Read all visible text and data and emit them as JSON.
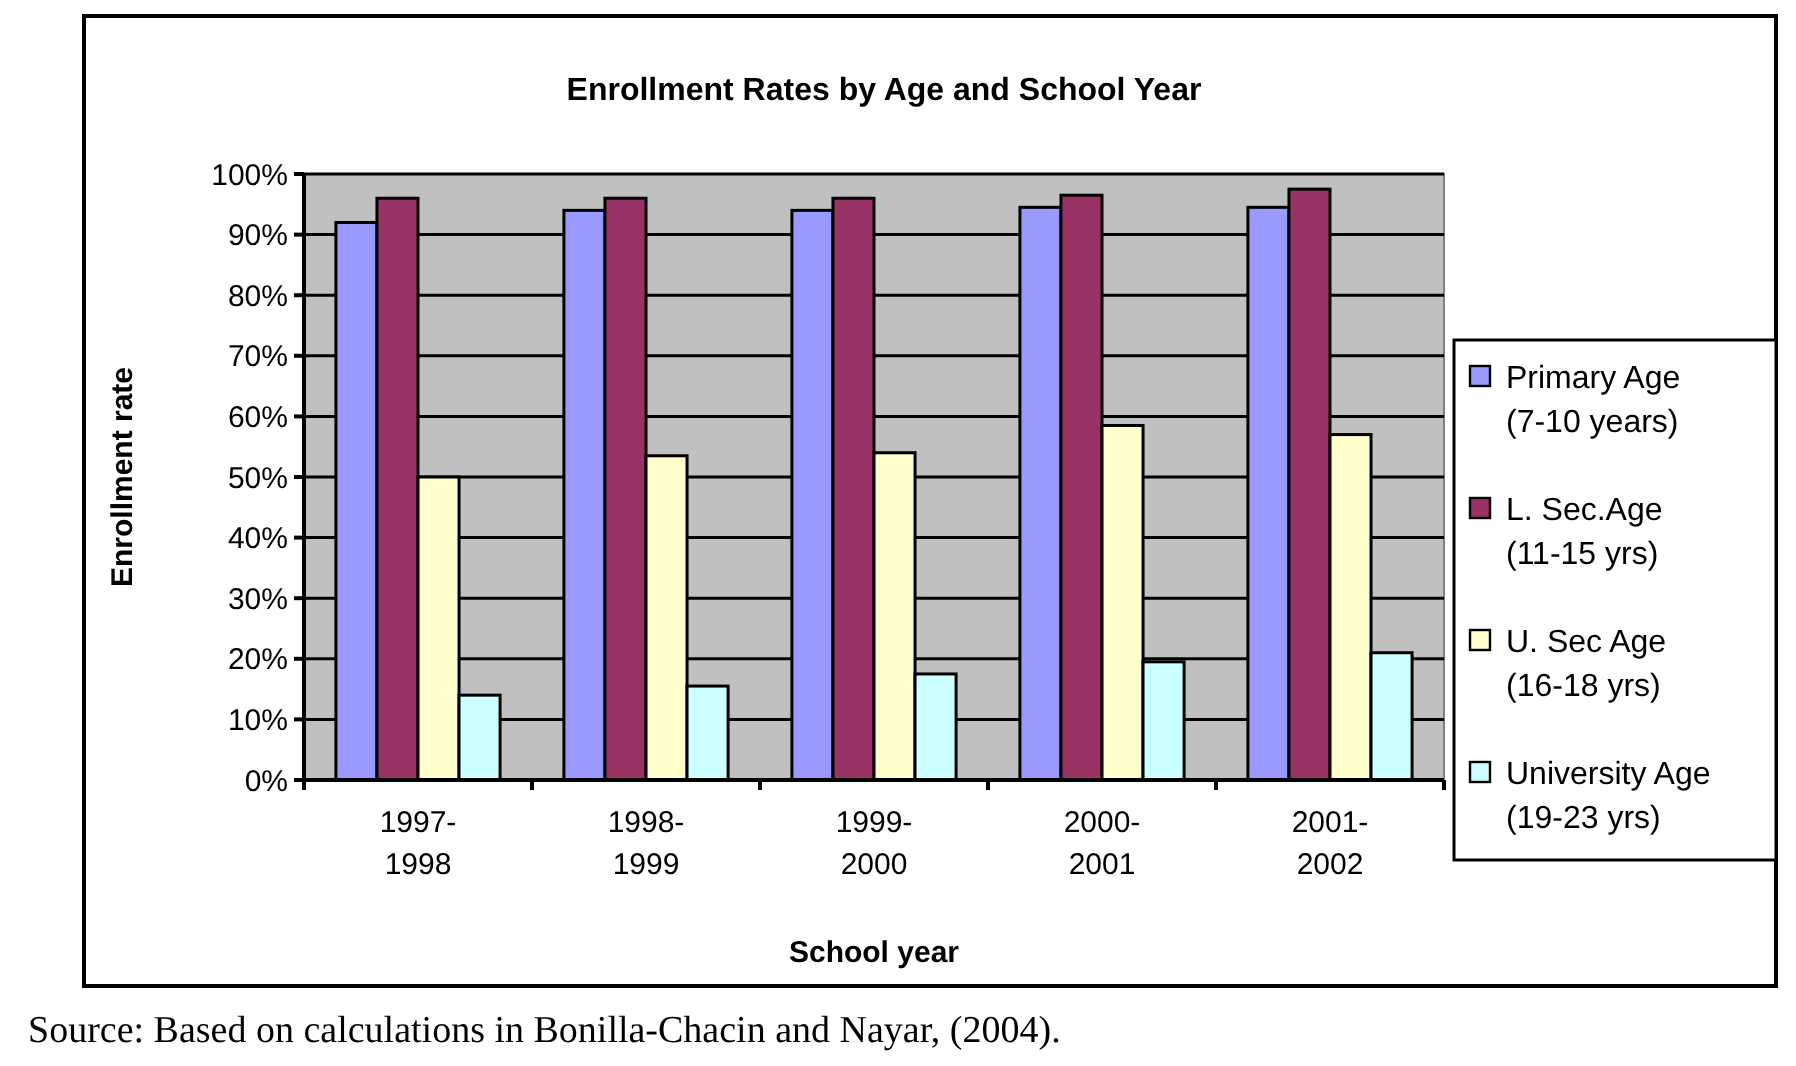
{
  "chart_data": {
    "type": "bar",
    "title": "Enrollment Rates by Age and School Year",
    "xlabel": "School year",
    "ylabel": "Enrollment rate",
    "categories": [
      "1997-\n1998",
      "1998-\n1999",
      "1999-\n2000",
      "2000-\n2001",
      "2001-\n2002"
    ],
    "series": [
      {
        "name": "Primary Age (7-10 years)",
        "color": "#9999ff",
        "values": [
          92,
          94,
          94,
          94.5,
          94.5
        ]
      },
      {
        "name": "L. Sec.Age (11-15 yrs)",
        "color": "#993366",
        "values": [
          96,
          96,
          96,
          96.5,
          97.5
        ]
      },
      {
        "name": "U. Sec Age (16-18 yrs)",
        "color": "#ffffcc",
        "values": [
          50,
          53.5,
          54,
          58.5,
          57
        ]
      },
      {
        "name": "University Age (19-23 yrs)",
        "color": "#ccffff",
        "values": [
          14,
          15.5,
          17.5,
          19.5,
          21
        ]
      }
    ],
    "ylim": [
      0,
      100
    ],
    "yticks": [
      {
        "value": 0,
        "label": "0%"
      },
      {
        "value": 10,
        "label": "10%"
      },
      {
        "value": 20,
        "label": "20%"
      },
      {
        "value": 30,
        "label": "30%"
      },
      {
        "value": 40,
        "label": "40%"
      },
      {
        "value": 50,
        "label": "50%"
      },
      {
        "value": 60,
        "label": "60%"
      },
      {
        "value": 70,
        "label": "70%"
      },
      {
        "value": 80,
        "label": "80%"
      },
      {
        "value": 90,
        "label": "90%"
      },
      {
        "value": 100,
        "label": "100%"
      }
    ],
    "grid": "y",
    "legend": "right",
    "annotations": [
      "Source: Based on calculations in Bonilla-Chacin and Nayar, (2004)."
    ]
  }
}
